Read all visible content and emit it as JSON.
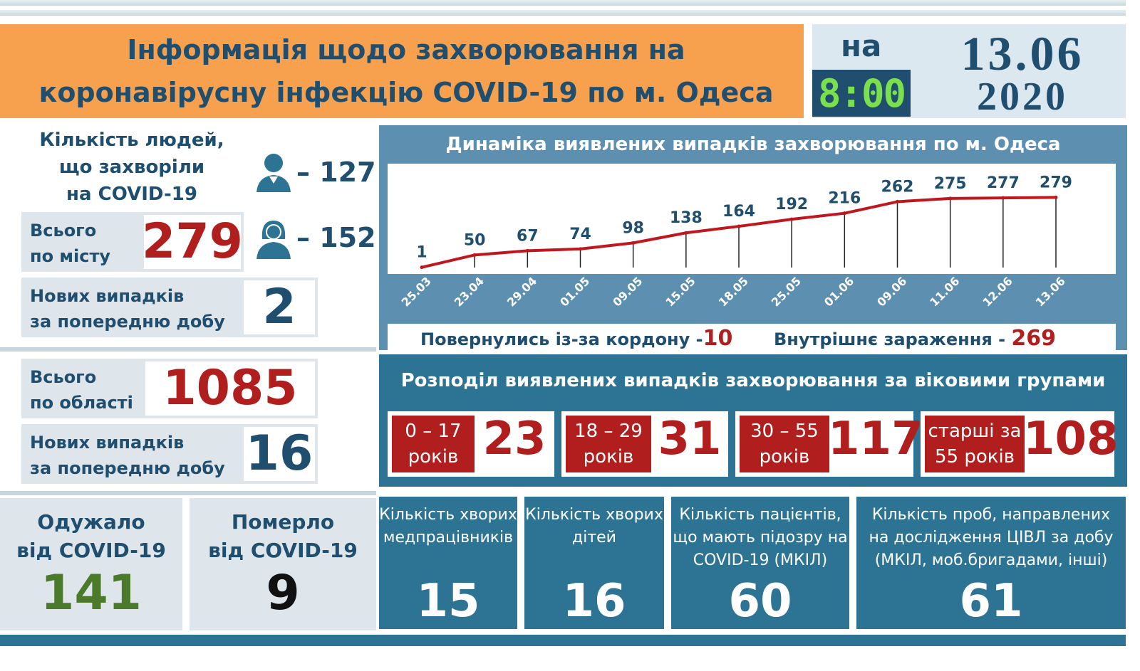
{
  "header": {
    "title_line1": "Інформація щодо захворювання на",
    "title_line2": "коронавірусну інфекцію COVID-19 по м. Одеса",
    "na": "на",
    "time": "8:00",
    "date_day": "13.06",
    "date_year": "2020"
  },
  "city": {
    "sick_label_1": "Кількість людей,",
    "sick_label_2": "що захворіли",
    "sick_label_3": "на COVID-19",
    "men": "127",
    "women": "152",
    "total_label_1": "Всього",
    "total_label_2": "по місту",
    "total": "279",
    "new_label_1": "Нових випадків",
    "new_label_2": "за попередню добу",
    "new": "2"
  },
  "region": {
    "total_label_1": "Всього",
    "total_label_2": "по області",
    "total": "1085",
    "new_label_1": "Нових випадків",
    "new_label_2": "за попередню добу",
    "new": "16"
  },
  "outcomes": {
    "recovered_label_1": "Одужало",
    "recovered_label_2": "від COVID-19",
    "recovered": "141",
    "died_label_1": "Померло",
    "died_label_2": "від COVID-19",
    "died": "9"
  },
  "chart_data": {
    "type": "line",
    "title": "Динаміка виявлених випадків захворювання по м. Одеса",
    "categories": [
      "25.03",
      "23.04",
      "29.04",
      "01.05",
      "09.05",
      "15.05",
      "18.05",
      "25.05",
      "01.06",
      "09.06",
      "11.06",
      "12.06",
      "13.06"
    ],
    "values": [
      1,
      50,
      67,
      74,
      98,
      138,
      164,
      192,
      216,
      262,
      275,
      277,
      279
    ],
    "color": "#c0171e",
    "ylim": [
      0,
      300
    ]
  },
  "import": {
    "returned_label": "Повернулись із-за кордону -",
    "returned": "10",
    "internal_label": "Внутрішнє зараження -",
    "internal": "269"
  },
  "age": {
    "title": "Розподіл виявлених випадків захворювання за віковими групами",
    "groups": [
      {
        "l1": "0 – 17",
        "l2": "років",
        "value": "23"
      },
      {
        "l1": "18 – 29",
        "l2": "років",
        "value": "31"
      },
      {
        "l1": "30 – 55",
        "l2": "років",
        "value": "117"
      },
      {
        "l1": "старші за",
        "l2": "55 років",
        "value": "108"
      }
    ]
  },
  "stats": [
    {
      "l1": "Кількість хворих",
      "l2": "медпрацівників",
      "l3": "",
      "value": "15"
    },
    {
      "l1": "Кількість хворих",
      "l2": "дітей",
      "l3": "",
      "value": "16"
    },
    {
      "l1": "Кількість пацієнтів,",
      "l2": "що мають підозру на",
      "l3": "COVID-19 (МКІЛ)",
      "value": "60"
    },
    {
      "l1": "Кількість проб, направлених",
      "l2": "на дослідження ЦІВЛ за добу",
      "l3": "(МКІЛ, моб.бригадами, інші)",
      "value": "61"
    }
  ],
  "colors": {
    "accent_red": "#b01e1e",
    "navy": "#1f4e6e",
    "teal": "#2d7494",
    "green": "#4a7a2a",
    "orange": "#f7a14e"
  }
}
